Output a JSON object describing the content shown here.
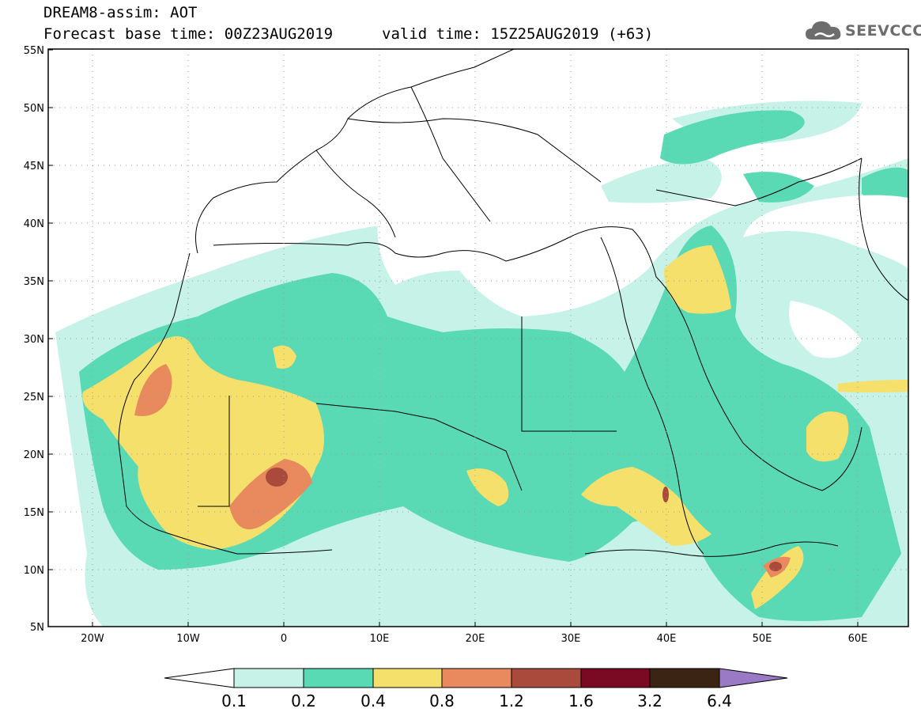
{
  "header": {
    "title": "DREAM8-assim: AOT",
    "base_time": "Forecast base time: 00Z23AUG2019",
    "valid_time": "valid time: 15Z25AUG2019 (+63)"
  },
  "logo": {
    "text": "SEEVCCC",
    "icon": "cloud-icon",
    "color": "#6d6d6d"
  },
  "map": {
    "lon_range": [
      -25,
      65
    ],
    "lat_range": [
      5,
      55
    ],
    "lat_labels": [
      "55N",
      "50N",
      "45N",
      "40N",
      "35N",
      "30N",
      "25N",
      "20N",
      "15N",
      "10N",
      "5N"
    ],
    "lon_labels": [
      "20W",
      "10W",
      "0",
      "10E",
      "20E",
      "30E",
      "40E",
      "50E",
      "60E"
    ]
  },
  "colorbar": {
    "levels": [
      "0.1",
      "0.2",
      "0.4",
      "0.8",
      "1.2",
      "1.6",
      "3.2",
      "6.4"
    ],
    "colors": [
      "#ffffff",
      "#c7f2e8",
      "#5ad9b5",
      "#f6e06c",
      "#e88a5d",
      "#a94a3c",
      "#7a0a23",
      "#3b2413",
      "#9b7ac5"
    ]
  }
}
